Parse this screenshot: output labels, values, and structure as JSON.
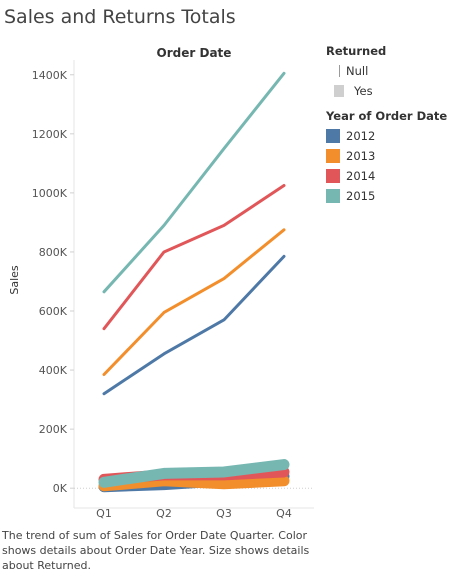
{
  "page": {
    "title": "Sales and Returns Totals",
    "caption": "The trend of sum of Sales for Order Date Quarter. Color shows details about Order Date Year. Size shows details about Returned."
  },
  "legend": {
    "returned_title": "Returned",
    "returned_items": [
      "Null",
      "Yes"
    ],
    "year_title": "Year of Order Date"
  },
  "chart_data": {
    "type": "line",
    "title": "Order Date",
    "xlabel": "",
    "ylabel": "Sales",
    "categories": [
      "Q1",
      "Q2",
      "Q3",
      "Q4"
    ],
    "yticks": [
      "0K",
      "200K",
      "400K",
      "600K",
      "800K",
      "1000K",
      "1200K",
      "1400K"
    ],
    "ylim": [
      -40000,
      1450000
    ],
    "grid": false,
    "legend_position": "right",
    "series": [
      {
        "name": "2012",
        "color": "#4e79a7",
        "sales": [
          320000,
          455000,
          570000,
          785000
        ],
        "returns": [
          5000,
          12000,
          25000,
          40000
        ]
      },
      {
        "name": "2013",
        "color": "#f28e2b",
        "sales": [
          385000,
          595000,
          710000,
          875000
        ],
        "returns": [
          8000,
          25000,
          15000,
          25000
        ]
      },
      {
        "name": "2014",
        "color": "#e15759",
        "sales": [
          540000,
          800000,
          890000,
          1025000
        ],
        "returns": [
          30000,
          45000,
          45000,
          55000
        ]
      },
      {
        "name": "2015",
        "color": "#76b7b2",
        "sales": [
          665000,
          890000,
          1150000,
          1405000
        ],
        "returns": [
          20000,
          50000,
          55000,
          80000
        ]
      }
    ]
  }
}
